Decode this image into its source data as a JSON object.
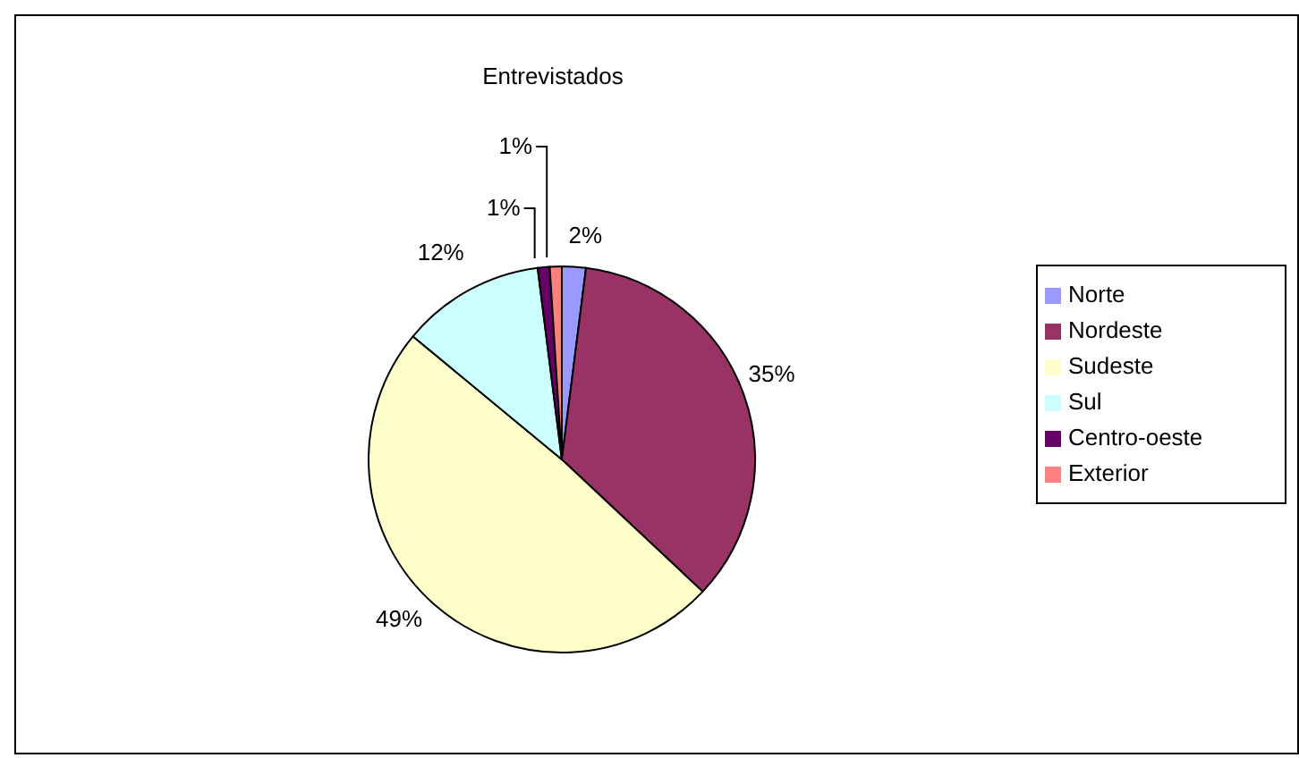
{
  "chart_data": {
    "type": "pie",
    "title": "Entrevistados",
    "categories": [
      "Norte",
      "Nordeste",
      "Sudeste",
      "Sul",
      "Centro-oeste",
      "Exterior"
    ],
    "values": [
      2,
      35,
      49,
      12,
      1,
      1
    ],
    "colors": [
      "#9999ff",
      "#993366",
      "#ffffcc",
      "#ccffff",
      "#660066",
      "#ff8080"
    ],
    "value_labels": [
      "2%",
      "35%",
      "49%",
      "12%",
      "1%",
      "1%"
    ],
    "legend": "right"
  }
}
